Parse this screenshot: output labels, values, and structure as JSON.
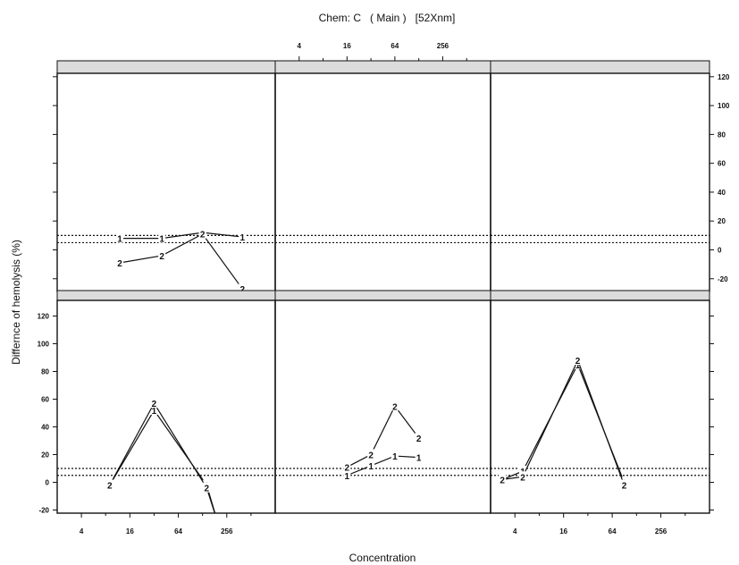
{
  "title": "Chem: C   ( Main )   [52Xnm]",
  "chart_data": {
    "type": "line",
    "title": "Chem: C   ( Main )   [52Xnm]",
    "xlabel": "Concentration",
    "ylabel": "Differnce of hemolysis (%)",
    "x_scale": "log2",
    "xlim": [
      2,
      1024
    ],
    "ylim": [
      -30,
      130
    ],
    "x_ticks": [
      4,
      16,
      64,
      256
    ],
    "x_tick_labels": [
      "4",
      "16",
      "64",
      "256"
    ],
    "y_ticks": [
      -20,
      0,
      20,
      40,
      60,
      80,
      100,
      120
    ],
    "y_tick_labels": [
      "-20",
      "0",
      "20",
      "40",
      "60",
      "80",
      "100",
      "120"
    ],
    "reference_lines": [
      5,
      10
    ],
    "panels": [
      {
        "row": "top",
        "col": 1,
        "series": [
          {
            "marker": "1",
            "x": [
              12,
              40,
              128,
              400
            ],
            "y": [
              8,
              8,
              12,
              9
            ]
          },
          {
            "marker": "2",
            "x": [
              12,
              40,
              128,
              400
            ],
            "y": [
              -9,
              -4,
              11,
              -27
            ]
          }
        ]
      },
      {
        "row": "top",
        "col": 2,
        "series": []
      },
      {
        "row": "top",
        "col": 3,
        "series": []
      },
      {
        "row": "bottom",
        "col": 1,
        "series": [
          {
            "marker": "1",
            "x": [
              9,
              32,
              144,
              200
            ],
            "y": [
              -2,
              52,
              -2,
              -30
            ]
          },
          {
            "marker": "2",
            "x": [
              9,
              32,
              144,
              200
            ],
            "y": [
              -2,
              57,
              -4,
              -30
            ]
          }
        ]
      },
      {
        "row": "bottom",
        "col": 2,
        "series": [
          {
            "marker": "1",
            "x": [
              16,
              32,
              64,
              128
            ],
            "y": [
              5,
              12,
              19,
              18
            ]
          },
          {
            "marker": "2",
            "x": [
              16,
              32,
              64,
              128
            ],
            "y": [
              11,
              20,
              55,
              32
            ]
          }
        ]
      },
      {
        "row": "bottom",
        "col": 3,
        "series": [
          {
            "marker": "1",
            "x": [
              2.8,
              5,
              24,
              90
            ],
            "y": [
              2,
              8,
              85,
              0
            ]
          },
          {
            "marker": "2",
            "x": [
              2.8,
              5,
              24,
              90
            ],
            "y": [
              2,
              4,
              88,
              -2
            ]
          }
        ]
      }
    ]
  }
}
